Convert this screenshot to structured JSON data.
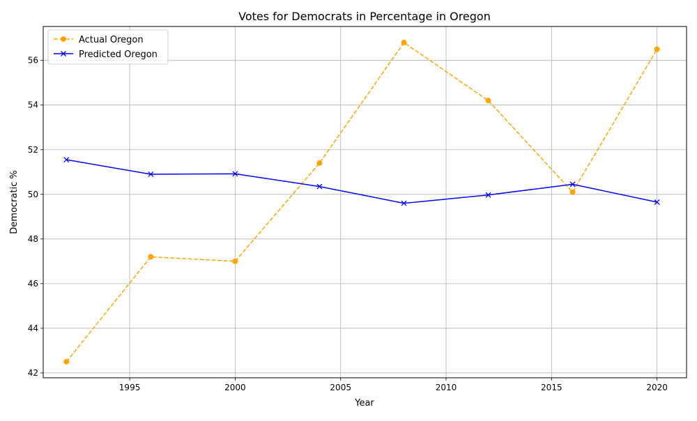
{
  "chart_data": {
    "type": "line",
    "title": "Votes for Democrats in Percentage in Oregon",
    "xlabel": "Year",
    "ylabel": "Democratic %",
    "xlim": [
      1990.9,
      2021.4
    ],
    "ylim": [
      41.78,
      57.52
    ],
    "grid": true,
    "legend_position": "top-left",
    "x_ticks": [
      1995,
      2000,
      2005,
      2010,
      2015,
      2020
    ],
    "y_ticks": [
      42,
      44,
      46,
      48,
      50,
      52,
      54,
      56
    ],
    "x": [
      1992,
      1996,
      2000,
      2004,
      2008,
      2012,
      2016,
      2020
    ],
    "series": [
      {
        "name": "Actual Oregon",
        "color": "#ffa500",
        "line_style": "dashed",
        "marker": "circle",
        "values": [
          42.5,
          47.2,
          47.0,
          51.4,
          56.8,
          54.2,
          50.1,
          56.5
        ]
      },
      {
        "name": "Predicted Oregon",
        "color": "#0000ff",
        "line_style": "solid",
        "marker": "x",
        "values": [
          51.55,
          50.9,
          50.92,
          50.35,
          49.6,
          49.97,
          50.45,
          49.65
        ]
      }
    ]
  }
}
